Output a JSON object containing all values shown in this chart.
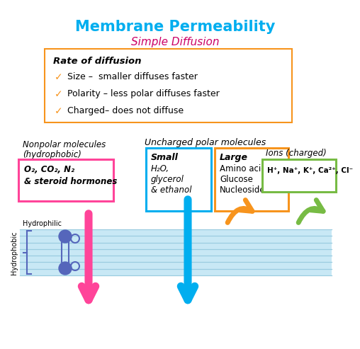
{
  "title": "Membrane Permeability",
  "subtitle": "Simple Diffusion",
  "title_color": "#00AEEF",
  "subtitle_color": "#CC0066",
  "bg_color": "#FFFFFF",
  "rate_box": {
    "text_title": "Rate of diffusion",
    "items": [
      "Size –  smaller diffuses faster",
      "Polarity – less polar diffuses faster",
      "Charged– does not diffuse"
    ],
    "check_color": "#F7941D",
    "box_edge_color": "#F7941D"
  },
  "membrane_color": "#C8E8F5",
  "membrane_line_color": "#9ACCE0",
  "nonpolar_box": {
    "label": "Nonpolar molecules\n(hydrophobic)",
    "content_line1": "O₂, CO₂, N₂",
    "content_line2": "& steroid hormones",
    "edge_color": "#FF4499",
    "text_color": "#000000"
  },
  "uncharged_label": "Uncharged polar molecules",
  "small_box": {
    "label": "Small",
    "content": "H₂O,\nglycerol\n& ethanol",
    "edge_color": "#00AEEF",
    "text_color": "#000000"
  },
  "large_box": {
    "label": "Large",
    "content": "Amino acids\nGlucose\nNucleosides",
    "edge_color": "#F7941D",
    "text_color": "#000000"
  },
  "ions_box": {
    "label": "Ions (charged)",
    "content": "H⁺, Na⁺, K⁺, Ca²⁺, Cl⁻",
    "edge_color": "#77BB44",
    "text_color": "#000000"
  },
  "pink_arrow_color": "#FF4499",
  "cyan_arrow_color": "#00AEEF",
  "yellow_arrow_color": "#F7941D",
  "green_arrow_color": "#77BB44",
  "lipid_color": "#5566BB"
}
